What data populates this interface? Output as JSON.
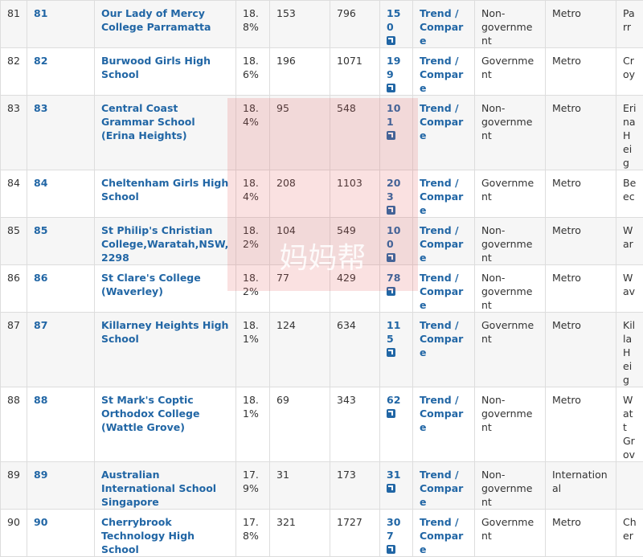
{
  "table": {
    "rows": [
      [
        "81",
        "81",
        "Our Lady of Mercy College Parramatta",
        "18.8%",
        "153",
        "796",
        "150",
        "Trend / Compare",
        "Non-government",
        "Metro",
        "Parr"
      ],
      [
        "82",
        "82",
        "Burwood Girls High School",
        "18.6%",
        "196",
        "1071",
        "199",
        "Trend / Compare",
        "Government",
        "Metro",
        "Croy"
      ],
      [
        "83",
        "83",
        "Central Coast Grammar School (Erina Heights)",
        "18.4%",
        "95",
        "548",
        "101",
        "Trend / Compare",
        "Non-government",
        "Metro",
        "Erina Heig"
      ],
      [
        "84",
        "84",
        "Cheltenham Girls High School",
        "18.4%",
        "208",
        "1103",
        "203",
        "Trend / Compare",
        "Government",
        "Metro",
        "Beec"
      ],
      [
        "85",
        "85",
        "St Philip's Christian College,Waratah,NSW,2298",
        "18.2%",
        "104",
        "549",
        "100",
        "Trend / Compare",
        "Non-government",
        "Metro",
        "War"
      ],
      [
        "86",
        "86",
        "St Clare's College (Waverley)",
        "18.2%",
        "77",
        "429",
        "78",
        "Trend / Compare",
        "Non-government",
        "Metro",
        "Wav"
      ],
      [
        "87",
        "87",
        "Killarney Heights High School",
        "18.1%",
        "124",
        "634",
        "115",
        "Trend / Compare",
        "Government",
        "Metro",
        "Killa Heig"
      ],
      [
        "88",
        "88",
        "St Mark's Coptic Orthodox College (Wattle Grove)",
        "18.1%",
        "69",
        "343",
        "62",
        "Trend / Compare",
        "Non-government",
        "Metro",
        "Watt Grov"
      ],
      [
        "89",
        "89",
        "Australian International School Singapore",
        "17.9%",
        "31",
        "173",
        "31",
        "Trend / Compare",
        "Non-government",
        "International",
        ""
      ],
      [
        "90",
        "90",
        "Cherrybrook Technology High School",
        "17.8%",
        "321",
        "1727",
        "307",
        "Trend / Compare",
        "Government",
        "Metro",
        "Cher"
      ]
    ]
  },
  "watermark": "妈妈帮"
}
